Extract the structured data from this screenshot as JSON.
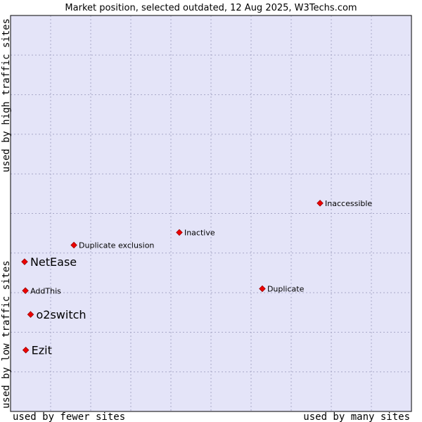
{
  "colors": {
    "plot_bg": "#e4e4f8",
    "grid": "#a8a8c8",
    "frame": "#000000",
    "marker_fill": "#ee0000",
    "marker_stroke": "#990000"
  },
  "chart_data": {
    "type": "scatter",
    "title": "Market position, selected outdated, 12 Aug 2025, W3Techs.com",
    "xlabel_left": "used by fewer sites",
    "xlabel_right": "used by many sites",
    "ylabel_bottom": "used by low traffic sites",
    "ylabel_top": "used by high traffic sites",
    "xlim": [
      0,
      100
    ],
    "ylim": [
      0,
      100
    ],
    "grid": true,
    "points": [
      {
        "name": "NetEase",
        "x": 3.5,
        "y": 37.8,
        "highlight": true
      },
      {
        "name": "o2switch",
        "x": 5.0,
        "y": 24.5,
        "highlight": true
      },
      {
        "name": "Ezit",
        "x": 3.8,
        "y": 15.5,
        "highlight": true
      },
      {
        "name": "AddThis",
        "x": 3.7,
        "y": 30.5,
        "highlight": false
      },
      {
        "name": "Duplicate exclusion",
        "x": 15.8,
        "y": 42.0,
        "highlight": false
      },
      {
        "name": "Inactive",
        "x": 42.1,
        "y": 45.2,
        "highlight": false
      },
      {
        "name": "Inaccessible",
        "x": 77.2,
        "y": 52.6,
        "highlight": false
      },
      {
        "name": "Duplicate",
        "x": 62.8,
        "y": 31.0,
        "highlight": false
      }
    ]
  }
}
